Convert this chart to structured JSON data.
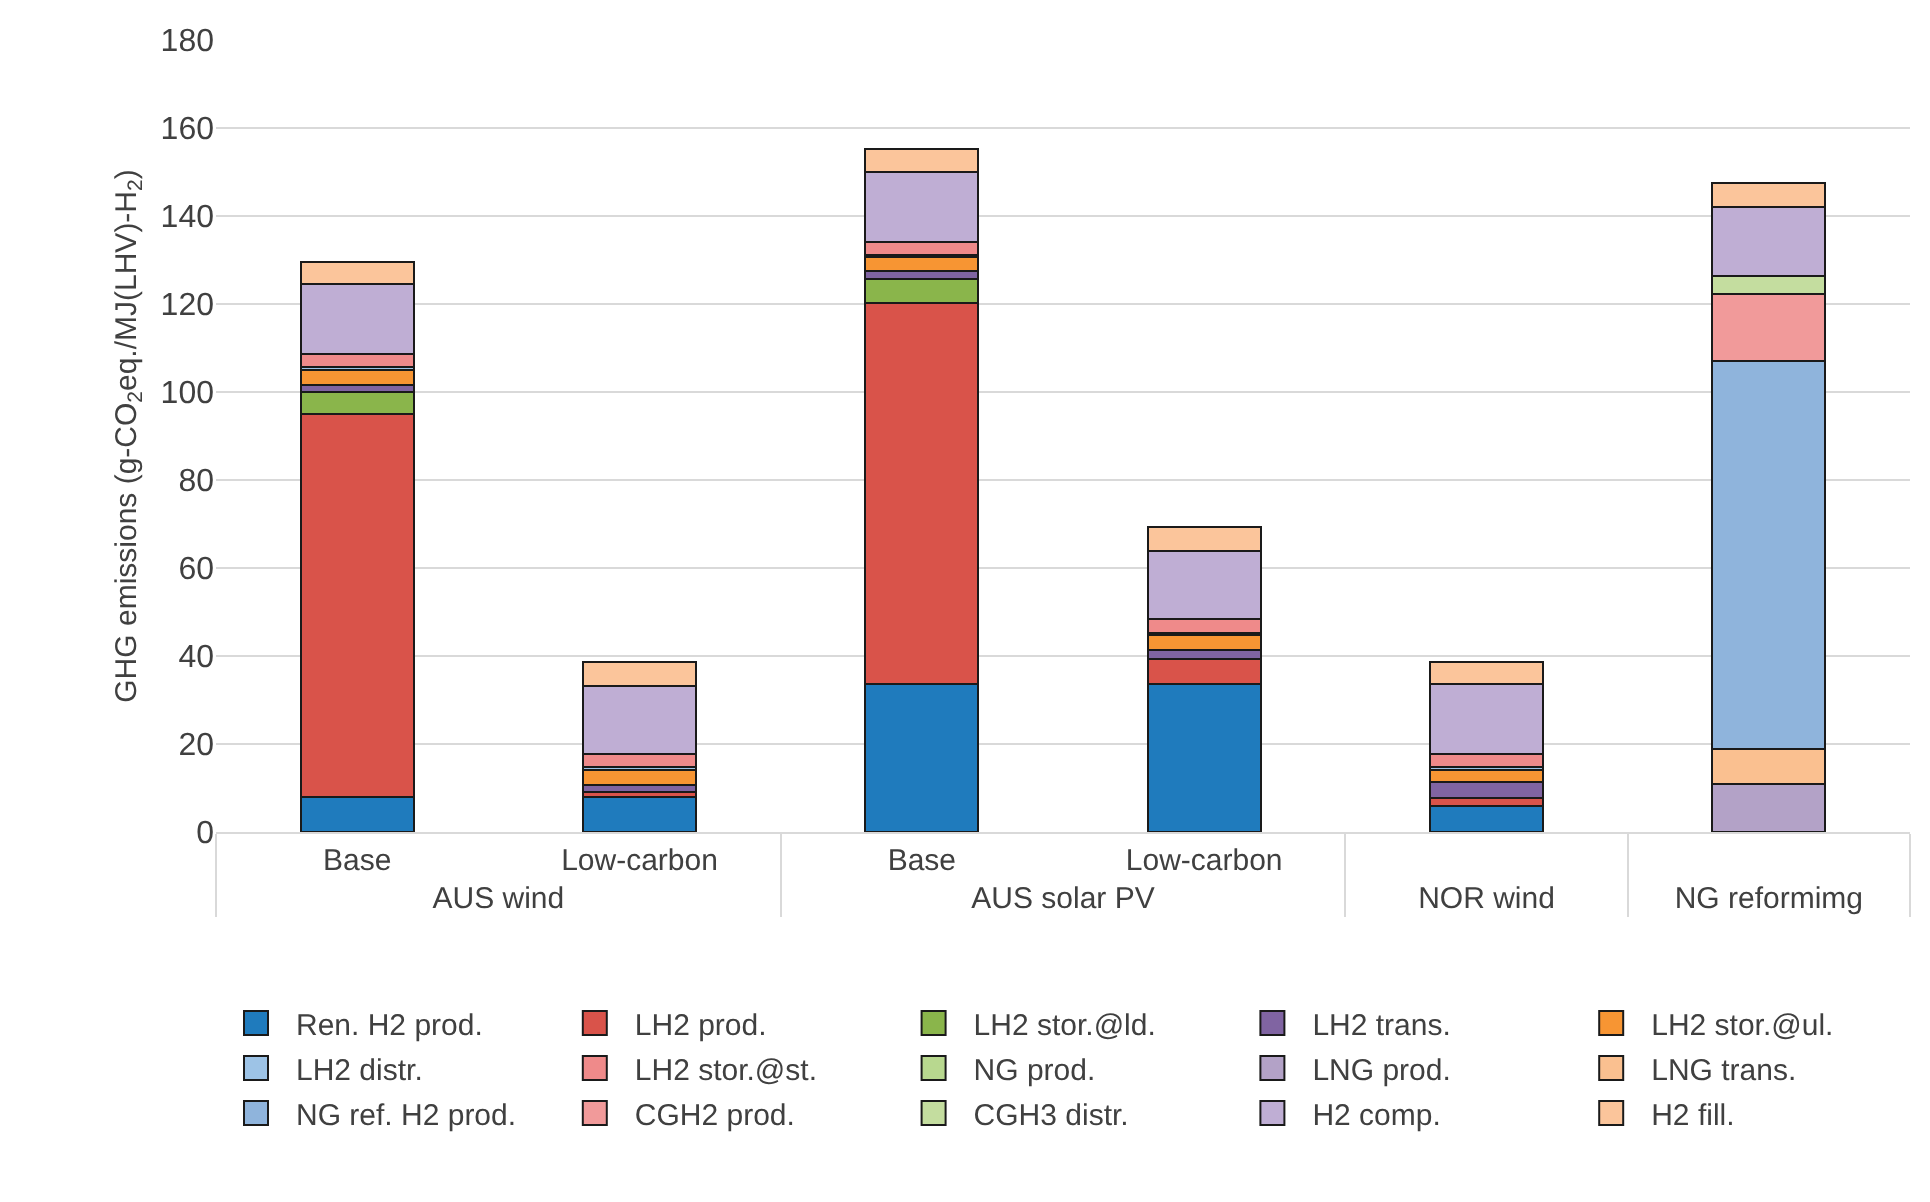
{
  "chart_data": {
    "type": "bar",
    "stacked": true,
    "ylabel": "GHG emissions (g-CO$_{2}$eq./MJ(LHV)-H$_{2}$)",
    "categories": [
      "Base",
      "Low-carbon",
      "Base",
      "Low-carbon",
      null,
      null
    ],
    "annotations": [
      "AUS wind",
      "AUS solar PV",
      "NOR wind",
      "NG reformimg"
    ],
    "ylim": [
      0,
      180
    ],
    "yticks": [
      0,
      20,
      40,
      60,
      80,
      100,
      120,
      140,
      160,
      180
    ],
    "grid": "y",
    "legend": "bottom",
    "series": [
      {
        "name": "Ren. H2 prod.",
        "color": "#1f7bbd",
        "values": [
          8,
          8,
          33.6,
          33.6,
          6,
          0
        ]
      },
      {
        "name": "LH2 prod.",
        "color": "#d9534a",
        "values": [
          87,
          1.2,
          86.7,
          5.7,
          1.7,
          0
        ]
      },
      {
        "name": "LH2 stor.@ld.",
        "color": "#8ab54b",
        "values": [
          5,
          0,
          5.3,
          0,
          0,
          0
        ]
      },
      {
        "name": "LH2 trans.",
        "color": "#8064a2",
        "values": [
          1.6,
          1.5,
          2,
          2.1,
          3.7,
          0
        ]
      },
      {
        "name": "LH2 stor.@ul.",
        "color": "#f79533",
        "values": [
          3.3,
          3.5,
          3.1,
          3.4,
          2.8,
          0
        ]
      },
      {
        "name": "LH2 distr.",
        "color": "#9dc3e6",
        "values": [
          0.7,
          0.5,
          0.5,
          0.5,
          0.5,
          0
        ]
      },
      {
        "name": "LH2 stor.@st.",
        "color": "#ef8a8a",
        "values": [
          3,
          3,
          3,
          3.1,
          3,
          0
        ]
      },
      {
        "name": "NG prod.",
        "color": "#b8d88f",
        "values": [
          0,
          0,
          0,
          0,
          0,
          0
        ]
      },
      {
        "name": "LNG prod.",
        "color": "#b3a2c7",
        "values": [
          0,
          0,
          0,
          0,
          0,
          11
        ]
      },
      {
        "name": "LNG trans.",
        "color": "#fac090",
        "values": [
          0,
          0,
          0,
          0,
          0,
          7.8
        ]
      },
      {
        "name": "NG ref. H2 prod.",
        "color": "#8fb4dc",
        "values": [
          0,
          0,
          0,
          0,
          0,
          88.2
        ]
      },
      {
        "name": "CGH2 prod.",
        "color": "#f19a9a",
        "values": [
          0,
          0,
          0,
          0,
          0,
          15.2
        ]
      },
      {
        "name": "CGH3 distr.",
        "color": "#c4dd9f",
        "values": [
          0,
          0,
          0,
          0,
          0,
          4.2
        ]
      },
      {
        "name": "H2 comp.",
        "color": "#bfaed4",
        "values": [
          16,
          15.5,
          15.7,
          15.5,
          16,
          15.7
        ]
      },
      {
        "name": "H2 fill.",
        "color": "#fbc59b",
        "values": [
          5,
          5.5,
          5.3,
          5.5,
          5,
          5.4
        ]
      }
    ]
  }
}
